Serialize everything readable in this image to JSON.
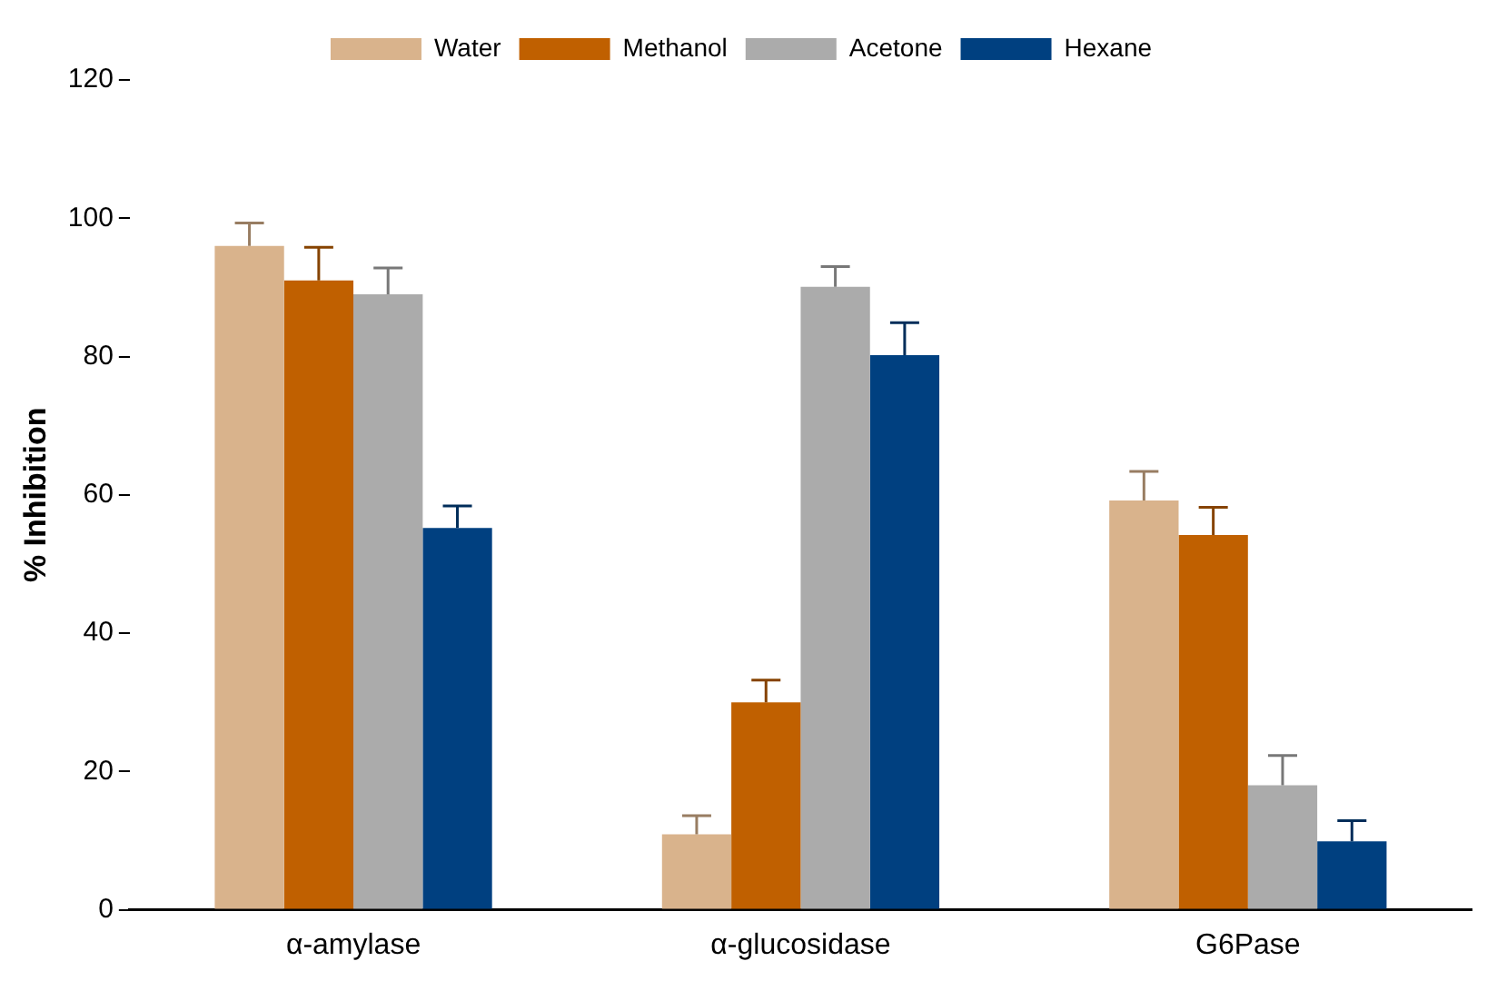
{
  "chart_data": {
    "type": "bar",
    "ylabel": "% Inhibition",
    "categories": [
      "α-amylase",
      "α-glucosidase",
      "G6Pase"
    ],
    "series": [
      {
        "name": "Water",
        "color": "#d9b38c",
        "values": [
          96,
          10.9,
          59.2
        ],
        "errors": [
          [
            96,
            99.3
          ],
          [
            10.9,
            13.6
          ],
          [
            59.2,
            63.4
          ]
        ]
      },
      {
        "name": "Methanol",
        "color": "#c06000",
        "values": [
          91,
          30,
          54.2
        ],
        "errors": [
          [
            91,
            95.8
          ],
          [
            30,
            33.2
          ],
          [
            54.2,
            58.2
          ]
        ]
      },
      {
        "name": "Acetone",
        "color": "#ababab",
        "values": [
          89,
          90.1,
          18
        ],
        "errors": [
          [
            89,
            92.8
          ],
          [
            90.1,
            93
          ],
          [
            18,
            22.3
          ]
        ]
      },
      {
        "name": "Hexane",
        "color": "#004080",
        "values": [
          55.2,
          80.2,
          9.9
        ],
        "errors": [
          [
            55.2,
            58.4
          ],
          [
            80.2,
            84.9
          ],
          [
            9.9,
            12.9
          ]
        ]
      }
    ],
    "ylim": [
      0,
      120
    ],
    "yticks": [
      0,
      20,
      40,
      60,
      80,
      100,
      120
    ],
    "grid": false,
    "legend": "top"
  }
}
